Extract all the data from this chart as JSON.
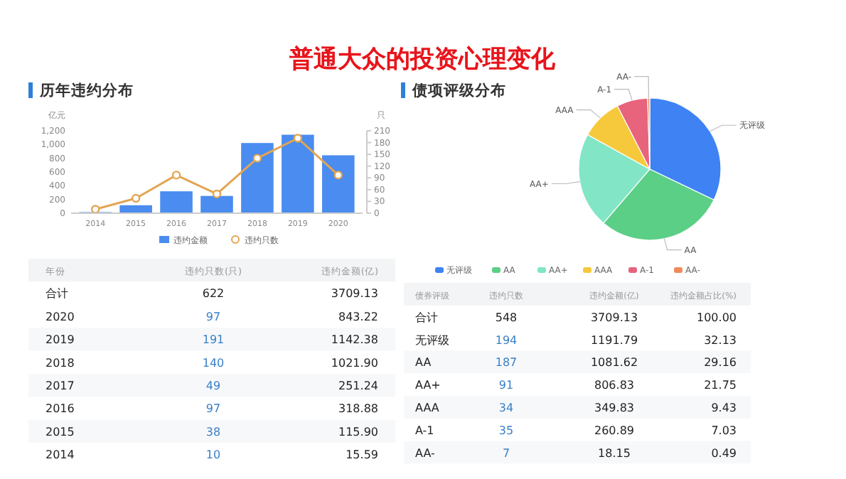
{
  "chart_data": [
    {
      "type": "bar",
      "title": "历年违约分布",
      "categories": [
        "2014",
        "2015",
        "2016",
        "2017",
        "2018",
        "2019",
        "2020"
      ],
      "ylabel": "亿元",
      "y2label": "只",
      "ylim": [
        0,
        1200
      ],
      "yticks": [
        0,
        200,
        400,
        600,
        800,
        {
          "value": 1000,
          "label": "1,000"
        },
        {
          "value": 1200,
          "label": "1,200"
        }
      ],
      "y2lim": [
        0,
        210
      ],
      "y2ticks": [
        0,
        30,
        60,
        90,
        120,
        150,
        180,
        210
      ],
      "legend": "bottom",
      "series": [
        {
          "name": "违约金额",
          "type": "bar",
          "color": "#4a8cf0",
          "values": [
            15.59,
            115.9,
            318.88,
            251.24,
            1021.9,
            1142.38,
            843.22
          ]
        },
        {
          "name": "违约只数",
          "type": "line",
          "axis": "y2",
          "color": "#e3a552",
          "marker": "circle",
          "values": [
            10,
            38,
            97,
            49,
            140,
            191,
            97
          ]
        }
      ],
      "annotations": [
        "普通大众的投资心理变化",
        "年份",
        "违约只数(只)",
        "违约金额(亿)",
        "合计",
        "622",
        "3709.13",
        "97",
        "191",
        "140",
        "49",
        "97",
        "38",
        "10",
        "843.22",
        "1142.38",
        "1021.90",
        "251.24",
        "318.88",
        "115.90",
        "15.59"
      ]
    },
    {
      "type": "pie",
      "title": "债项评级分布",
      "categories": [
        "无评级",
        "AA",
        "AA+",
        "AAA",
        "A-1",
        "AA-"
      ],
      "values": [
        32.13,
        29.16,
        21.75,
        9.43,
        7.03,
        0.49
      ],
      "colors": [
        "#3e82f4",
        "#5ccf86",
        "#82e6c6",
        "#f6c93c",
        "#e8637c",
        "#ef8a5c"
      ],
      "legend": "bottom",
      "annotations": [
        "债券评级",
        "违约只数",
        "违约金额(亿)",
        "违约金额占比(%)",
        "合计",
        "548",
        "3709.13",
        "100.00",
        "194",
        "187",
        "91",
        "34",
        "35",
        "7",
        "1191.79",
        "1081.62",
        "806.83",
        "349.83",
        "260.89",
        "18.15",
        "32.13",
        "29.16",
        "21.75",
        "9.43",
        "7.03",
        "0.49"
      ]
    }
  ]
}
